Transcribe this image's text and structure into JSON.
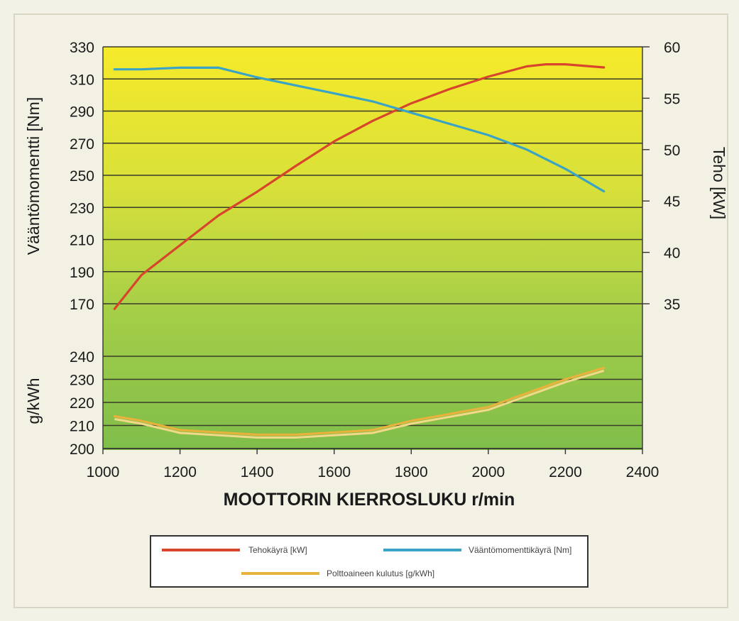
{
  "chart_data": {
    "type": "line",
    "title": "",
    "xlabel": "MOOTTORIN KIERROSLUKU r/min",
    "xlim": [
      1000,
      2400
    ],
    "x_ticks": [
      "1000",
      "1200",
      "1400",
      "1600",
      "1800",
      "2000",
      "2200",
      "2400"
    ],
    "upper": {
      "ylabel_left": "Vääntömomentti [Nm]",
      "ylim_left": [
        170,
        330
      ],
      "y_ticks_left": [
        "170",
        "190",
        "210",
        "230",
        "250",
        "270",
        "290",
        "310",
        "330"
      ],
      "ylabel_right": "Teho [kW]",
      "ylim_right": [
        35,
        60
      ],
      "y_ticks_right": [
        "35",
        "40",
        "45",
        "50",
        "55",
        "60"
      ]
    },
    "lower": {
      "ylabel": "g/kWh",
      "ylim": [
        200,
        240
      ],
      "y_ticks": [
        "200",
        "210",
        "220",
        "230",
        "240"
      ]
    },
    "series": [
      {
        "name": "Tehokäyrä [kW]",
        "color": "#d6452c",
        "axis": "right",
        "x": [
          1030,
          1100,
          1200,
          1300,
          1400,
          1500,
          1600,
          1700,
          1800,
          1900,
          2000,
          2100,
          2150,
          2200,
          2300
        ],
        "values": [
          34.5,
          37.8,
          40.7,
          43.6,
          45.9,
          48.4,
          50.8,
          52.8,
          54.5,
          55.9,
          57.1,
          58.1,
          58.3,
          58.3,
          58.0
        ]
      },
      {
        "name": "Vääntömomenttikäyrä [Nm]",
        "color": "#3aa3c6",
        "axis": "left",
        "x": [
          1030,
          1100,
          1200,
          1300,
          1400,
          1500,
          1600,
          1700,
          1800,
          1900,
          2000,
          2100,
          2200,
          2300
        ],
        "values": [
          316,
          316,
          317,
          317,
          311,
          306,
          301,
          296,
          289,
          282,
          275,
          266,
          254,
          240
        ]
      },
      {
        "name": "Polttoaineen kulutus [g/kWh]",
        "color": "#e8b23c",
        "axis": "lower",
        "x": [
          1030,
          1100,
          1200,
          1300,
          1400,
          1500,
          1600,
          1700,
          1800,
          1900,
          2000,
          2100,
          2200,
          2300
        ],
        "values": [
          214,
          212,
          208,
          207,
          206,
          206,
          207,
          208,
          212,
          215,
          218,
          224,
          230,
          235
        ]
      }
    ],
    "legend": [
      {
        "label": "Tehokäyrä [kW]",
        "color": "#d6452c"
      },
      {
        "label": "Vääntömomenttikäyrä [Nm]",
        "color": "#3aa3c6"
      },
      {
        "label": "Polttoaineen kulutus [g/kWh]",
        "color": "#e8b23c"
      }
    ],
    "grid": true,
    "legend_placement": "bottom"
  }
}
